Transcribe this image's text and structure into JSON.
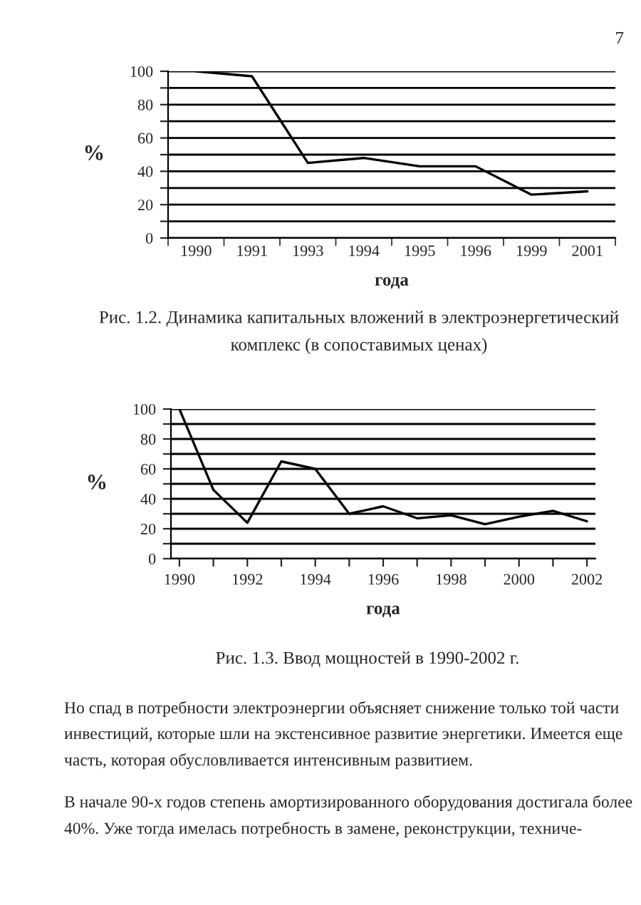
{
  "chart_data": [
    {
      "type": "line",
      "categories": [
        "1990",
        "1991",
        "1993",
        "1994",
        "1995",
        "1996",
        "1999",
        "2001"
      ],
      "series": [
        {
          "color": "#000000",
          "values": [
            100,
            97,
            45,
            48,
            43,
            43,
            26,
            28
          ]
        }
      ],
      "xlabel": "года",
      "ylabel": "%",
      "ylim": [
        0,
        100
      ],
      "yticks": [
        0,
        {
          "value": 10,
          "label": null
        },
        20,
        {
          "value": 30,
          "label": null
        },
        40,
        {
          "value": 50,
          "label": null
        },
        60,
        {
          "value": 70,
          "label": null
        },
        80,
        {
          "value": 90,
          "label": null
        },
        100
      ],
      "grid": "y",
      "legend": false,
      "marker": "none",
      "line_style": "solid",
      "annotations": [
        "7",
        "Рис. 1.2. Динамика капитальных вложений в электроэнергетический комплекс (в сопоставимых ценах)"
      ]
    },
    {
      "type": "line",
      "x": [
        1990,
        1991,
        1992,
        1993,
        1994,
        1995,
        1996,
        1997,
        1998,
        1999,
        2000,
        2001,
        2002
      ],
      "series": [
        {
          "color": "#000000",
          "values": [
            100,
            46,
            24,
            65,
            60,
            30,
            35,
            27,
            29,
            23,
            28,
            32,
            25
          ]
        }
      ],
      "xlabel": "года",
      "ylabel": "%",
      "xlim": [
        1989.75,
        2002.25
      ],
      "xticks": [
        1990,
        {
          "value": 1991,
          "label": null
        },
        1992,
        {
          "value": 1993,
          "label": null
        },
        1994,
        {
          "value": 1995,
          "label": null
        },
        1996,
        {
          "value": 1997,
          "label": null
        },
        1998,
        {
          "value": 1999,
          "label": null
        },
        2000,
        {
          "value": 2001,
          "label": null
        },
        2002
      ],
      "ylim": [
        0,
        100
      ],
      "yticks": [
        0,
        {
          "value": 10,
          "label": null
        },
        20,
        {
          "value": 30,
          "label": null
        },
        40,
        {
          "value": 50,
          "label": null
        },
        60,
        {
          "value": 70,
          "label": null
        },
        80,
        {
          "value": 90,
          "label": null
        },
        100
      ],
      "grid": "y",
      "legend": false,
      "marker": "none",
      "line_style": "solid",
      "annotations": [
        "Рис. 1.3. Ввод мощностей в 1990-2002 г.",
        "Но спад в потребности электроэнергии объясняет снижение только той части инвестиций, которые шли на экстенсивное развитие энергетики. Имеется еще часть, которая обусловливается интенсивным развитием.",
        "В начале 90-х годов степень амортизированного оборудования достигала более 40%. Уже тогда имелась потребность в замене, реконструкции, техниче-"
      ]
    }
  ]
}
